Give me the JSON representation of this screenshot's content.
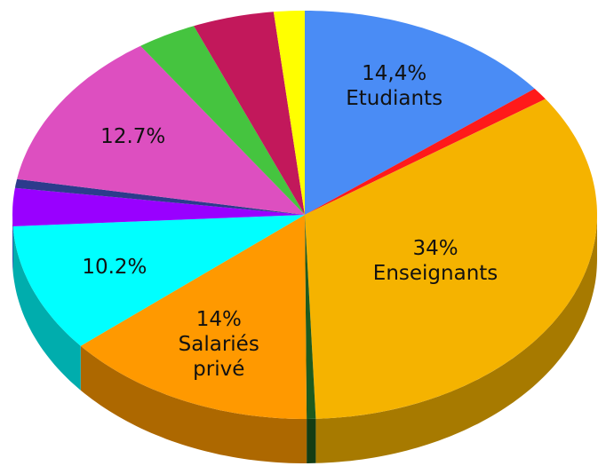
{
  "chart_data": {
    "type": "pie3d",
    "categories": [
      "Etudiants",
      null,
      "Enseignants",
      null,
      "Salariés privé",
      null,
      null,
      null,
      null,
      null,
      null,
      null
    ],
    "values": [
      14.4,
      1,
      34,
      0.5,
      14,
      10.2,
      3,
      0.7,
      12.7,
      3.3,
      4.5,
      1.7
    ],
    "value_labels": [
      "14,4%",
      null,
      "34%",
      null,
      "14%",
      "10.2%",
      null,
      null,
      "12.7%",
      null,
      null,
      null
    ],
    "colors": [
      "#4a8cf5",
      "#ff1a1a",
      "#f5b300",
      "#1e5a1e",
      "#ff9900",
      "#00ffff",
      "#9900ff",
      "#2c3b8c",
      "#dd4fc0",
      "#45c43f",
      "#c2185b",
      "#ffff00"
    ]
  }
}
